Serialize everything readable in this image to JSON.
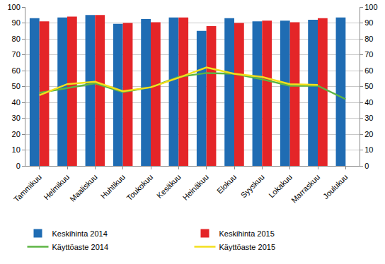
{
  "chart_data": {
    "type": "bar",
    "categories": [
      "Tammikuu",
      "Helmikuu",
      "Maaliskuu",
      "Huhtikuu",
      "Toukokuu",
      "Kesäkuu",
      "Heinäkuu",
      "Elokuu",
      "Syyskuu",
      "Lokakuu",
      "Marraskuu",
      "Joulukuu"
    ],
    "series": [
      {
        "name": "Keskihinta 2014",
        "type": "bar",
        "color": "#1f6cb3",
        "values": [
          93,
          93.5,
          95,
          89.5,
          92.5,
          93.5,
          85,
          93,
          91,
          91.5,
          92,
          93.5
        ]
      },
      {
        "name": "Keskihinta 2015",
        "type": "bar",
        "color": "#e42528",
        "values": [
          91,
          94,
          95,
          90,
          90.5,
          93.5,
          88,
          90,
          91.5,
          90.5,
          93,
          null
        ]
      },
      {
        "name": "Käyttöaste 2014",
        "type": "line",
        "axis": "y2",
        "color": "#5cb543",
        "values": [
          46,
          49,
          52,
          46.5,
          49.5,
          56,
          58.5,
          58,
          54.5,
          50.5,
          50.5,
          42
        ]
      },
      {
        "name": "Käyttöaste 2015",
        "type": "line",
        "axis": "y2",
        "color": "#f3df1c",
        "values": [
          44.5,
          51.5,
          53,
          47,
          49.5,
          55.5,
          62,
          58,
          56,
          51.5,
          51,
          null
        ]
      }
    ],
    "ylim": [
      0,
      100
    ],
    "yticks": [
      0,
      10,
      20,
      30,
      40,
      50,
      60,
      70,
      80,
      90,
      100
    ],
    "y2lim": [
      0,
      100
    ],
    "y2ticks": [
      0,
      10,
      20,
      30,
      40,
      50,
      60,
      70,
      80,
      90,
      100
    ],
    "grid": true,
    "legend": "bottom"
  }
}
